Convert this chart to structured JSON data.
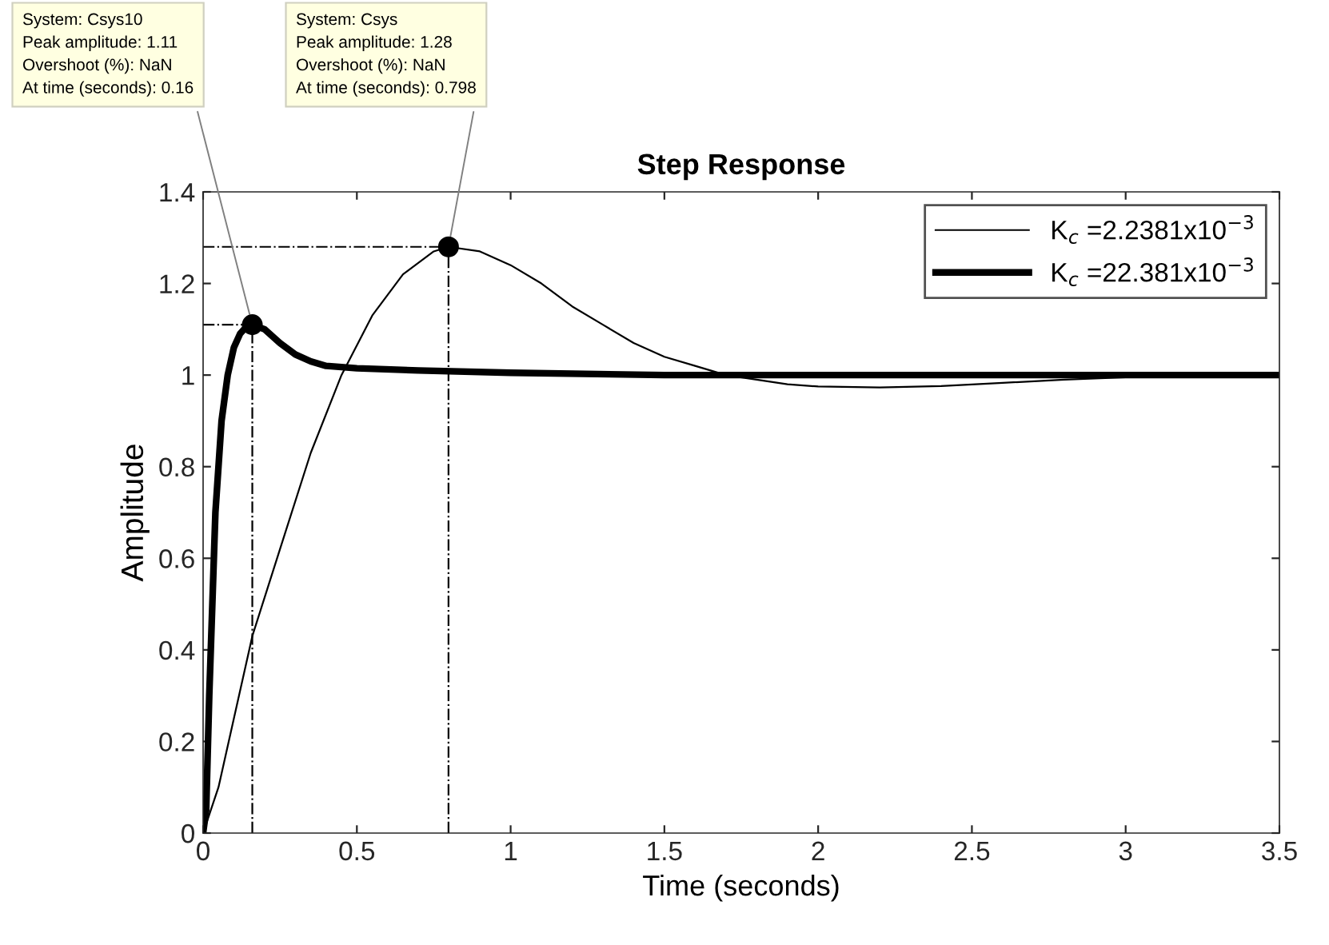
{
  "chart_data": {
    "type": "line",
    "title": "Step Response",
    "xlabel": "Time (seconds)",
    "ylabel": "Amplitude",
    "xlim": [
      0,
      3.5
    ],
    "xticks": [
      0,
      0.5,
      1,
      1.5,
      2,
      2.5,
      3,
      3.5
    ],
    "ylim": [
      0,
      1.4
    ],
    "yticks": [
      0,
      0.2,
      0.4,
      0.6,
      0.8,
      1,
      1.2,
      1.4
    ],
    "grid": false,
    "legend": "top right",
    "marker": "none",
    "line_style": "solid",
    "series": [
      {
        "name": "K$_{c}$ =2.2381x10$^{−3}$",
        "color": "#000000",
        "x": [
          0,
          0.05,
          0.1,
          0.16,
          0.25,
          0.35,
          0.45,
          0.55,
          0.65,
          0.75,
          0.798,
          0.9,
          1.0,
          1.1,
          1.2,
          1.3,
          1.4,
          1.5,
          1.6,
          1.7,
          1.8,
          1.9,
          2.0,
          2.2,
          2.4,
          2.6,
          2.8,
          3.0,
          3.2,
          3.5
        ],
        "values": [
          0,
          0.1,
          0.25,
          0.43,
          0.62,
          0.83,
          1.0,
          1.13,
          1.22,
          1.27,
          1.28,
          1.27,
          1.24,
          1.2,
          1.15,
          1.11,
          1.07,
          1.04,
          1.02,
          1.0,
          0.99,
          0.98,
          0.975,
          0.973,
          0.976,
          0.983,
          0.99,
          0.995,
          1.0,
          1.0
        ]
      },
      {
        "name": "K$_{c}$ =22.381x10$^{−3}$",
        "color": "#000000",
        "x": [
          0,
          0.01,
          0.02,
          0.04,
          0.06,
          0.08,
          0.1,
          0.12,
          0.14,
          0.16,
          0.2,
          0.25,
          0.3,
          0.35,
          0.4,
          0.5,
          0.7,
          1.0,
          1.5,
          2,
          3,
          3.5
        ],
        "values": [
          0,
          0.05,
          0.3,
          0.7,
          0.9,
          1.0,
          1.06,
          1.09,
          1.105,
          1.11,
          1.1,
          1.07,
          1.045,
          1.03,
          1.02,
          1.015,
          1.01,
          1.005,
          1.0,
          1.0,
          1.0,
          1.0
        ]
      },
      {
        "color": "#000000",
        "line_style": "dashdot",
        "x": [
          0.798,
          0.798
        ],
        "values": [
          0,
          1.28
        ]
      },
      {
        "color": "#000000",
        "line_style": "dashdot",
        "x": [
          0,
          0.798
        ],
        "values": [
          1.28,
          1.28
        ]
      },
      {
        "color": "#000000",
        "line_style": "dashdot",
        "x": [
          0.16,
          0.16
        ],
        "values": [
          0,
          1.11
        ]
      },
      {
        "color": "#000000",
        "line_style": "dashdot",
        "x": [
          0,
          0.16
        ],
        "values": [
          1.11,
          1.11
        ]
      },
      {
        "type": "scatter",
        "color": "#000000",
        "marker": "circle",
        "x": [
          0.798,
          0.16
        ],
        "values": [
          1.28,
          1.11
        ]
      }
    ],
    "annotations": [
      {
        "text": "System: Csys\nPeak amplitude: 1.28\nOvershoot (%): NaN\nAt time (seconds): 0.798",
        "x": 0.798,
        "y": 1.28
      },
      {
        "text": "System: Csys10\nPeak amplitude: 1.11\nOvershoot (%): NaN\nAt time (seconds): 0.16",
        "x": 0.16,
        "y": 1.11
      }
    ]
  }
}
